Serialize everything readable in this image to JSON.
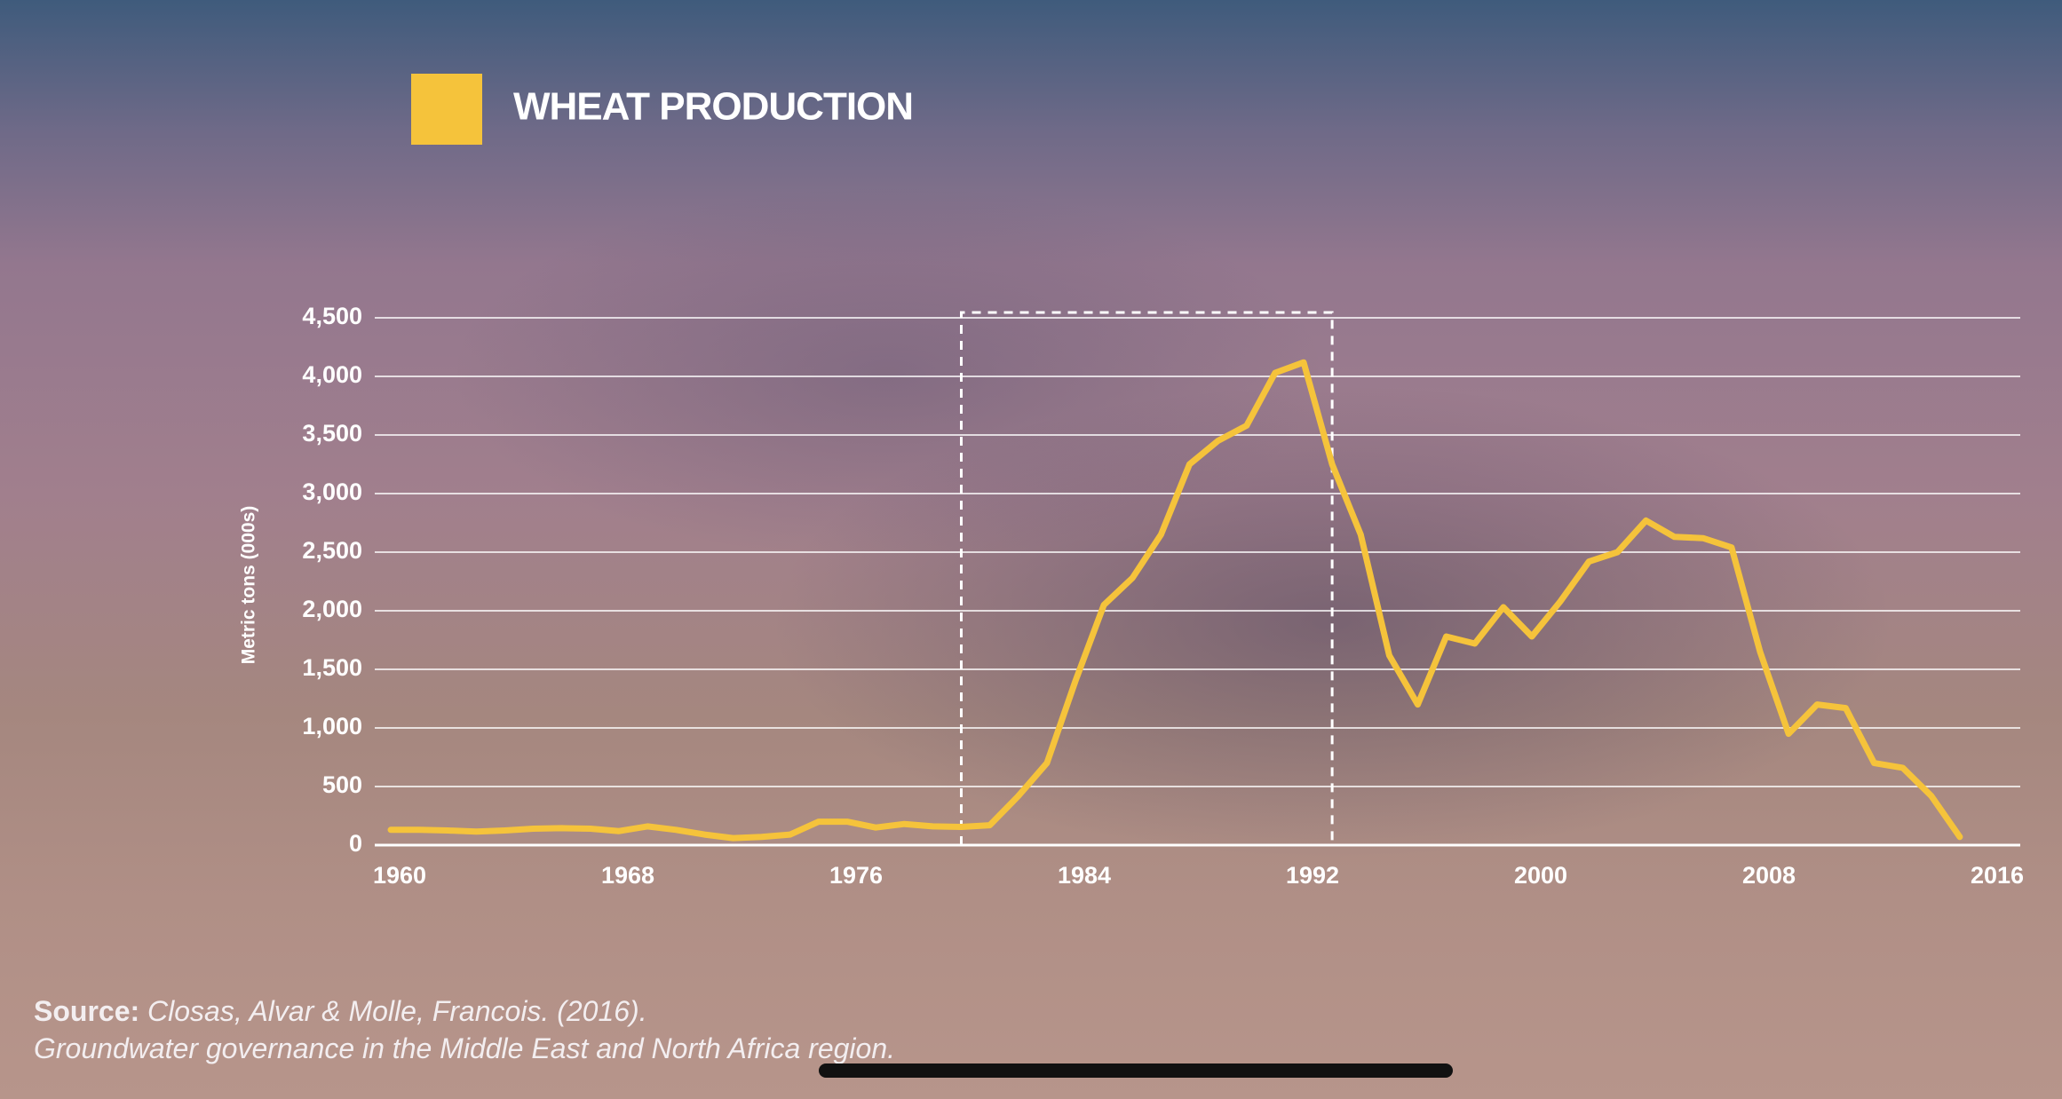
{
  "chart_data": {
    "type": "line",
    "legend_title_color": "#f5c33b",
    "y_label": "Metric tons (000s)",
    "x": [
      1960,
      1961,
      1962,
      1963,
      1964,
      1965,
      1966,
      1967,
      1968,
      1969,
      1970,
      1971,
      1972,
      1973,
      1974,
      1975,
      1976,
      1977,
      1978,
      1979,
      1980,
      1981,
      1982,
      1983,
      1984,
      1985,
      1986,
      1987,
      1988,
      1989,
      1990,
      1991,
      1992,
      1993,
      1994,
      1995,
      1996,
      1997,
      1998,
      1999,
      2000,
      2001,
      2002,
      2003,
      2004,
      2005,
      2006,
      2007,
      2008,
      2009,
      2010,
      2011,
      2012,
      2013,
      2014,
      2015
    ],
    "series": [
      {
        "name": "WHEAT PRODUCTION",
        "color": "#f5c33b",
        "values": [
          130,
          130,
          125,
          115,
          125,
          140,
          145,
          140,
          120,
          160,
          130,
          90,
          60,
          70,
          90,
          200,
          200,
          150,
          180,
          160,
          155,
          170,
          420,
          700,
          1400,
          2050,
          2280,
          2650,
          3250,
          3450,
          3580,
          4030,
          4120,
          3250,
          2650,
          1620,
          1200,
          1780,
          1720,
          2030,
          1780,
          2080,
          2420,
          2500,
          2770,
          2630,
          2620,
          2540,
          1650,
          950,
          1200,
          1170,
          700,
          660,
          420,
          70
        ]
      }
    ],
    "xlim": [
      1960,
      2016
    ],
    "xticks": [
      1960,
      1968,
      1976,
      1984,
      1992,
      2000,
      2008,
      2016
    ],
    "ylim": [
      0,
      4500
    ],
    "yticks": [
      0,
      500,
      {
        "value": 1000,
        "label": "1,000"
      },
      {
        "value": 1500,
        "label": "1,500"
      },
      {
        "value": 2000,
        "label": "2,000"
      },
      {
        "value": 2500,
        "label": "2,500"
      },
      {
        "value": 3000,
        "label": "3,000"
      },
      {
        "value": 3500,
        "label": "3,500"
      },
      {
        "value": 4000,
        "label": "4,000"
      },
      {
        "value": 4500,
        "label": "4,500"
      }
    ],
    "grid": true,
    "highlight_range": [
      1980,
      1993
    ]
  },
  "source": {
    "label": "Source:",
    "lines": [
      "Closas, Alvar & Molle, Francois. (2016).",
      "Groundwater governance in the Middle East and North Africa region."
    ]
  }
}
